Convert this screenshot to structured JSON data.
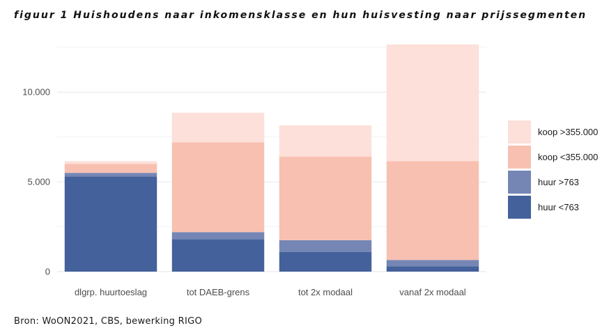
{
  "figure": {
    "title": "figuur 1   Huishoudens naar inkomensklasse en hun huisvesting naar prijssegmenten",
    "source": "Bron: WoON2021, CBS, bewerking RIGO"
  },
  "chart_data": {
    "type": "bar",
    "stacked": true,
    "categories": [
      "dlgrp. huurtoeslag",
      "tot DAEB-grens",
      "tot 2x modaal",
      "vanaf 2x modaal"
    ],
    "series": [
      {
        "name": "huur <763",
        "color": "#44619b",
        "values": [
          5300,
          1800,
          1100,
          300
        ]
      },
      {
        "name": "huur >763",
        "color": "#7586b5",
        "values": [
          200,
          400,
          650,
          350
        ]
      },
      {
        "name": "koop <355.000",
        "color": "#f8c0b0",
        "values": [
          500,
          5000,
          4650,
          5500
        ]
      },
      {
        "name": "koop >355.000",
        "color": "#fce0d9",
        "values": [
          150,
          1650,
          1750,
          6500
        ]
      }
    ],
    "y_ticks": [
      0,
      5000,
      10000
    ],
    "y_tick_labels": [
      "0",
      "5.000",
      "10.000"
    ],
    "ylim": [
      0,
      12800
    ],
    "grid": true,
    "legend_position": "right",
    "legend_order": [
      "koop >355.000",
      "koop <355.000",
      "huur >763",
      "huur <763"
    ],
    "xlabel": "",
    "ylabel": ""
  }
}
